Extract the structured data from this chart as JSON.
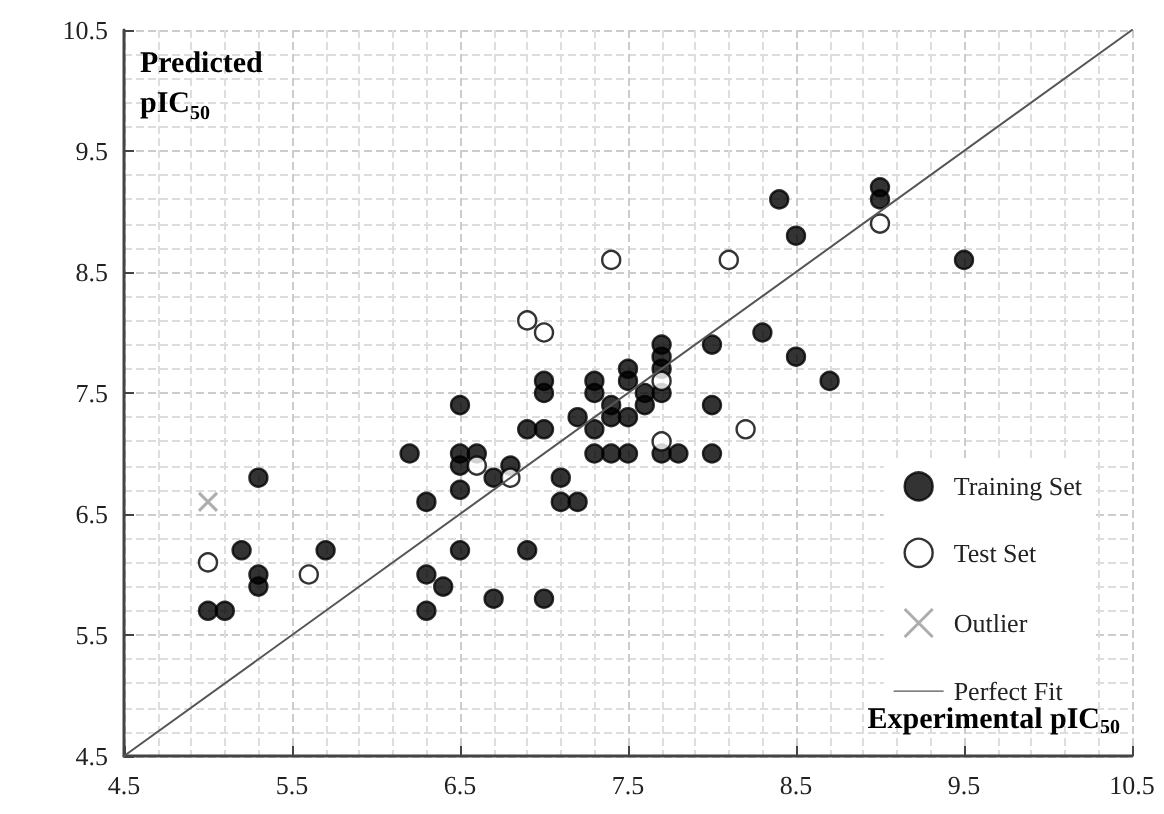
{
  "chart_data": {
    "type": "scatter",
    "xlabel": "Experimental pIC$_{50}$",
    "ylabel": "Predicted pIC$_{50}$",
    "xlim": [
      4.5,
      10.5
    ],
    "ylim": [
      4.5,
      10.5
    ],
    "xticks": [
      4.5,
      5.5,
      6.5,
      7.5,
      8.5,
      9.5,
      10.5
    ],
    "yticks": [
      4.5,
      5.5,
      6.5,
      7.5,
      8.5,
      9.5,
      10.5
    ],
    "grid": true,
    "legend": "bottom right",
    "series": [
      {
        "name": "Training Set",
        "marker": "circle",
        "color": "#000000",
        "x": [
          5.0,
          5.1,
          5.2,
          5.3,
          5.3,
          5.3,
          5.7,
          6.2,
          6.3,
          6.3,
          6.3,
          6.4,
          6.5,
          6.5,
          6.5,
          6.5,
          6.5,
          6.6,
          6.7,
          6.7,
          6.8,
          6.9,
          6.9,
          7.0,
          7.0,
          7.0,
          7.0,
          7.1,
          7.1,
          7.2,
          7.2,
          7.3,
          7.3,
          7.3,
          7.3,
          7.4,
          7.4,
          7.4,
          7.5,
          7.5,
          7.5,
          7.5,
          7.6,
          7.6,
          7.7,
          7.7,
          7.7,
          7.7,
          7.7,
          7.8,
          8.0,
          8.0,
          8.0,
          8.3,
          8.4,
          8.5,
          8.5,
          8.7,
          9.0,
          9.0,
          9.5
        ],
        "values": [
          5.7,
          5.7,
          6.2,
          6.0,
          5.9,
          6.8,
          6.2,
          7.0,
          6.6,
          6.0,
          5.7,
          5.9,
          7.4,
          7.0,
          6.9,
          6.7,
          6.2,
          7.0,
          6.8,
          5.8,
          6.9,
          7.2,
          6.2,
          7.6,
          7.5,
          7.2,
          5.8,
          6.8,
          6.6,
          7.3,
          6.6,
          7.6,
          7.5,
          7.2,
          7.0,
          7.4,
          7.3,
          7.0,
          7.7,
          7.6,
          7.3,
          7.0,
          7.5,
          7.4,
          7.9,
          7.8,
          7.7,
          7.5,
          7.0,
          7.0,
          7.9,
          7.4,
          7.0,
          8.0,
          9.1,
          8.8,
          7.8,
          7.6,
          9.2,
          9.1,
          8.6
        ]
      },
      {
        "name": "Test Set",
        "marker": "circle",
        "color": "#ffffff",
        "x": [
          5.0,
          5.6,
          6.6,
          6.8,
          6.9,
          7.0,
          7.4,
          7.7,
          7.7,
          8.1,
          8.2,
          9.0
        ],
        "values": [
          6.1,
          6.0,
          6.9,
          6.8,
          8.1,
          8.0,
          8.6,
          7.6,
          7.1,
          8.6,
          7.2,
          8.9
        ]
      },
      {
        "name": "Outlier",
        "marker": "cross",
        "color": "#999999",
        "x": [
          5.0
        ],
        "values": [
          6.6
        ]
      },
      {
        "name": "Perfect Fit",
        "type": "line",
        "marker": "none",
        "line_style": "solid",
        "color": "#555555",
        "x": [
          4.5,
          10.5
        ],
        "values": [
          4.5,
          10.5
        ]
      }
    ]
  }
}
